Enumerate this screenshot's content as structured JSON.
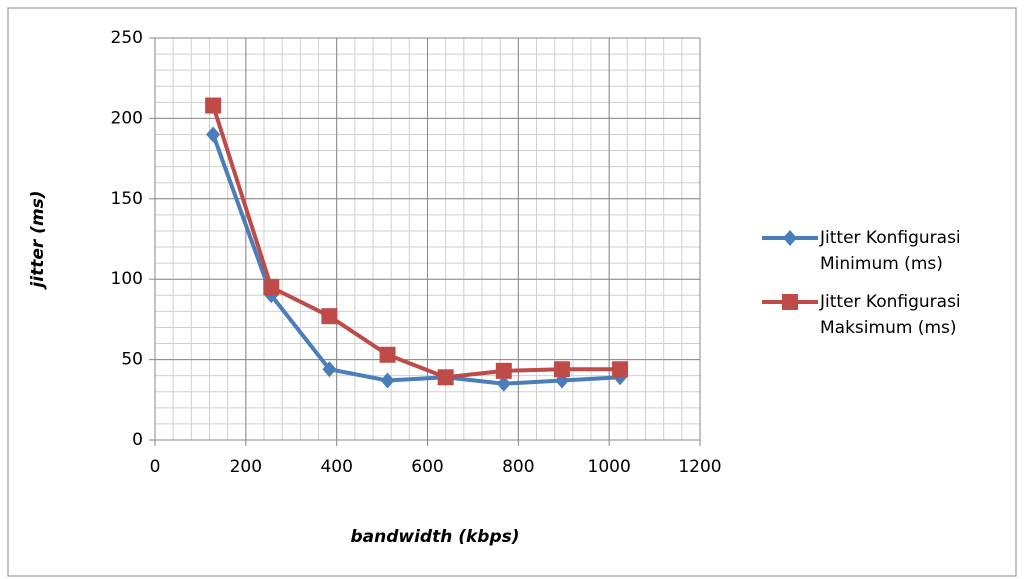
{
  "chart_data": {
    "type": "line",
    "x_label": "bandwidth (kbps)",
    "y_label": "jitter (ms)",
    "x": [
      128,
      256,
      384,
      512,
      640,
      768,
      896,
      1024
    ],
    "series": [
      {
        "name": "Jitter Konfigurasi Minimum (ms)",
        "color": "#4a7ebb",
        "marker": "diamond",
        "values": [
          190,
          90,
          44,
          37,
          39,
          35,
          37,
          39
        ]
      },
      {
        "name": "Jitter Konfigurasi Maksimum (ms)",
        "color": "#be4b48",
        "marker": "square",
        "values": [
          208,
          95,
          77,
          53,
          39,
          43,
          44,
          44
        ]
      }
    ],
    "xlim": [
      0,
      1200
    ],
    "xticks": [
      0,
      200,
      400,
      600,
      800,
      1000,
      1200
    ],
    "ylim": [
      0,
      250
    ],
    "yticks": [
      0,
      50,
      100,
      150,
      200,
      250
    ],
    "grid": true,
    "minor_grid": true,
    "legend": "right"
  }
}
